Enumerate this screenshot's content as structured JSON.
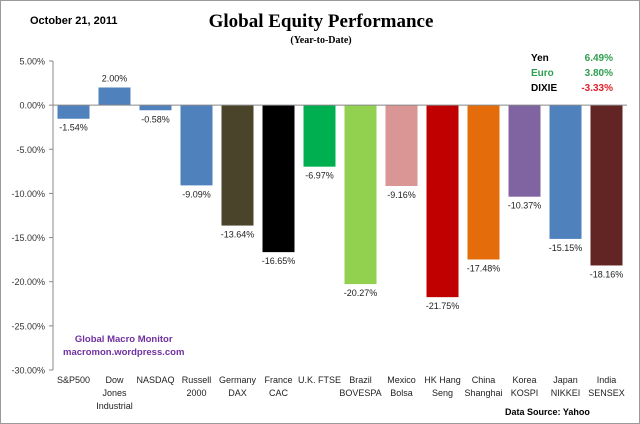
{
  "header": {
    "date": "October 21, 2011",
    "source": "Data Source:  Yahoo"
  },
  "watermark": {
    "line1": "Global Macro Monitor",
    "line2": "macromon.wordpress.com"
  },
  "fx": [
    {
      "name": "Yen",
      "value": "6.49%",
      "color": "#2e9e4f"
    },
    {
      "name": "Euro",
      "value": "3.80%",
      "color": "#2e9e4f"
    },
    {
      "name": "DIXIE",
      "value": "-3.33%",
      "color": "#e0202a"
    }
  ],
  "chart_data": {
    "type": "bar",
    "title": "Global Equity Performance",
    "subtitle": "(Year-to-Date)",
    "xlabel": "",
    "ylabel": "",
    "ylim": [
      -30,
      5
    ],
    "yticks": [
      5,
      0,
      -5,
      -10,
      -15,
      -20,
      -25,
      -30
    ],
    "ytick_labels": [
      "5.00%",
      "0.00%",
      "-5.00%",
      "-10.00%",
      "-15.00%",
      "-20.00%",
      "-25.00%",
      "-30.00%"
    ],
    "categories": [
      [
        "S&P500"
      ],
      [
        "Dow",
        "Jones",
        "Industrial"
      ],
      [
        "NASDAQ"
      ],
      [
        "Russell",
        "2000"
      ],
      [
        "Germany",
        "DAX"
      ],
      [
        "France",
        "CAC"
      ],
      [
        "U.K. FTSE"
      ],
      [
        "Brazil",
        "BOVESPA"
      ],
      [
        "Mexico",
        "Bolsa"
      ],
      [
        "HK Hang",
        "Seng"
      ],
      [
        "China",
        "Shanghai"
      ],
      [
        "Korea",
        "KOSPI"
      ],
      [
        "Japan",
        "NIKKEI"
      ],
      [
        "India",
        "SENSEX"
      ]
    ],
    "values": [
      -1.54,
      2.0,
      -0.58,
      -9.09,
      -13.64,
      -16.65,
      -6.97,
      -20.27,
      -9.16,
      -21.75,
      -17.48,
      -10.37,
      -15.15,
      -18.16
    ],
    "data_labels": [
      "-1.54%",
      "2.00%",
      "-0.58%",
      "-9.09%",
      "-13.64%",
      "-16.65%",
      "-6.97%",
      "-20.27%",
      "-9.16%",
      "-21.75%",
      "-17.48%",
      "-10.37%",
      "-15.15%",
      "-18.16%"
    ],
    "colors": [
      "#4f81bd",
      "#4f81bd",
      "#4f81bd",
      "#4f81bd",
      "#4a452a",
      "#000000",
      "#00b050",
      "#92d050",
      "#d99694",
      "#c00000",
      "#e46c0a",
      "#8064a2",
      "#4f81bd",
      "#632523"
    ],
    "grid": false,
    "legend": "none"
  }
}
